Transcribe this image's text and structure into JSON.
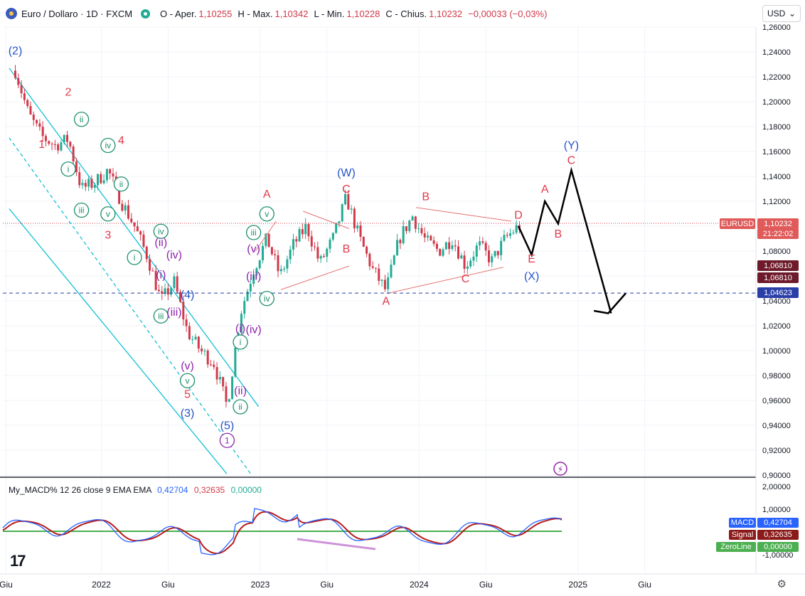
{
  "header": {
    "symbol_title": "Euro / Dollaro · 1D · FXCM",
    "open_label": "O - Aper.",
    "open_value": "1,10255",
    "high_label": "H - Max.",
    "high_value": "1,10342",
    "low_label": "L - Min.",
    "low_value": "1,10228",
    "close_label": "C - Chius.",
    "close_value": "1,10232",
    "change_value": "−0,00033 (−0,03%)",
    "currency_button": "USD"
  },
  "icons": {
    "flag": "eur-usd-flag-icon",
    "status": "market-status-icon",
    "logo": "tradingview-logo-icon",
    "settings": "gear-icon",
    "dropdown": "chevron-down-icon",
    "flash": "flash-icon"
  },
  "colors": {
    "up": "#22ab94",
    "down": "#d1394a",
    "trend": "#00bcd4",
    "wave_blue": "#2453c7",
    "wave_red": "#e0394a",
    "wave_green": "#1a8f6a",
    "wave_purple": "#8e24aa",
    "support": "#2a3ea8",
    "zero_line": "#4caf50",
    "signal": "#b71c1c",
    "macd": "#2962ff"
  },
  "macd": {
    "title": "My_MACD% 12 26 close 9 EMA EMA",
    "v1": "0,42704",
    "v2": "0,32635",
    "v3": "0,00000",
    "tags": [
      {
        "label": "MACD",
        "value": "0,42704"
      },
      {
        "label": "Signal",
        "value": "0,32635"
      },
      {
        "label": "ZeroLine",
        "value": "0,00000"
      }
    ],
    "axis": [
      "2,00000",
      "1,00000",
      "-1,00000"
    ]
  },
  "price_tags": [
    {
      "text": "EURUSD"
    },
    {
      "text": "1,10232"
    },
    {
      "text": "21:22:02"
    },
    {
      "text": "1,06810"
    },
    {
      "text": "1,06810"
    },
    {
      "text": "1,04623"
    }
  ],
  "chart_data": {
    "type": "line",
    "title": "Euro / Dollaro · 1D · FXCM",
    "y_ticks": [
      "1,26000",
      "1,24000",
      "1,22000",
      "1,20000",
      "1,18000",
      "1,16000",
      "1,14000",
      "1,12000",
      "1,10000",
      "1,08000",
      "1,06000",
      "1,04000",
      "1,02000",
      "1,00000",
      "0,98000",
      "0,96000",
      "0,94000",
      "0,92000",
      "0,90000"
    ],
    "x_ticks": [
      "Giu",
      "2022",
      "Giu",
      "2023",
      "Giu",
      "2024",
      "Giu",
      "2025",
      "Giu"
    ],
    "ylim": [
      0.9,
      1.26
    ],
    "price_path": [
      {
        "t": "2021-06",
        "p": 1.225
      },
      {
        "t": "2021-07",
        "p": 1.19
      },
      {
        "t": "2021-08",
        "p": 1.172
      },
      {
        "t": "2021-09",
        "p": 1.165
      },
      {
        "t": "2021-10",
        "p": 1.17
      },
      {
        "t": "2021-11",
        "p": 1.13
      },
      {
        "t": "2021-12",
        "p": 1.135
      },
      {
        "t": "2022-01",
        "p": 1.145
      },
      {
        "t": "2022-02",
        "p": 1.12
      },
      {
        "t": "2022-03",
        "p": 1.1
      },
      {
        "t": "2022-04",
        "p": 1.075
      },
      {
        "t": "2022-05",
        "p": 1.04
      },
      {
        "t": "2022-06",
        "p": 1.055
      },
      {
        "t": "2022-07",
        "p": 1.015
      },
      {
        "t": "2022-08",
        "p": 1.0
      },
      {
        "t": "2022-09",
        "p": 0.99
      },
      {
        "t": "2022-10",
        "p": 0.955
      },
      {
        "t": "2022-11",
        "p": 1.03
      },
      {
        "t": "2022-12",
        "p": 1.065
      },
      {
        "t": "2023-01",
        "p": 1.09
      },
      {
        "t": "2023-02",
        "p": 1.06
      },
      {
        "t": "2023-03",
        "p": 1.085
      },
      {
        "t": "2023-04",
        "p": 1.1
      },
      {
        "t": "2023-05",
        "p": 1.07
      },
      {
        "t": "2023-06",
        "p": 1.09
      },
      {
        "t": "2023-07",
        "p": 1.123
      },
      {
        "t": "2023-08",
        "p": 1.09
      },
      {
        "t": "2023-09",
        "p": 1.065
      },
      {
        "t": "2023-10",
        "p": 1.048
      },
      {
        "t": "2023-11",
        "p": 1.09
      },
      {
        "t": "2023-12",
        "p": 1.108
      },
      {
        "t": "2024-01",
        "p": 1.088
      },
      {
        "t": "2024-02",
        "p": 1.08
      },
      {
        "t": "2024-03",
        "p": 1.09
      },
      {
        "t": "2024-04",
        "p": 1.068
      },
      {
        "t": "2024-05",
        "p": 1.085
      },
      {
        "t": "2024-06",
        "p": 1.072
      },
      {
        "t": "2024-07",
        "p": 1.09
      },
      {
        "t": "2024-08",
        "p": 1.1
      }
    ],
    "forecast_path": [
      {
        "t": "2024-08",
        "p": 1.1
      },
      {
        "t": "2024-09",
        "p": 1.077
      },
      {
        "t": "2024-10",
        "p": 1.12
      },
      {
        "t": "2024-11",
        "p": 1.102
      },
      {
        "t": "2024-12",
        "p": 1.145
      },
      {
        "t": "2025-03",
        "p": 1.03
      },
      {
        "t": "2025-02",
        "p": 1.038
      },
      {
        "t": "2025-03",
        "p": 1.03
      },
      {
        "t": "2025-04",
        "p": 1.045
      }
    ],
    "current_price": 1.10232,
    "support_level": 1.04623,
    "labels": [
      {
        "text": "(2)",
        "t": "2021-06",
        "p": 1.238,
        "c": "blue"
      },
      {
        "text": "2",
        "t": "2021-10",
        "p": 1.205,
        "c": "red"
      },
      {
        "text": "1",
        "t": "2021-08",
        "p": 1.163,
        "c": "red"
      },
      {
        "text": "ii",
        "t": "2021-11",
        "p": 1.183,
        "c": "green",
        "circle": true
      },
      {
        "text": "iv",
        "t": "2022-01",
        "p": 1.162,
        "c": "green",
        "circle": true
      },
      {
        "text": "4",
        "t": "2022-02",
        "p": 1.166,
        "c": "red"
      },
      {
        "text": "i",
        "t": "2021-10",
        "p": 1.143,
        "c": "green",
        "circle": true
      },
      {
        "text": "ii",
        "t": "2022-02",
        "p": 1.131,
        "c": "green",
        "circle": true
      },
      {
        "text": "iii",
        "t": "2021-11",
        "p": 1.11,
        "c": "green",
        "circle": true
      },
      {
        "text": "v",
        "t": "2022-01",
        "p": 1.107,
        "c": "green",
        "circle": true
      },
      {
        "text": "3",
        "t": "2022-01",
        "p": 1.09,
        "c": "red"
      },
      {
        "text": "i",
        "t": "2022-03",
        "p": 1.072,
        "c": "green",
        "circle": true
      },
      {
        "text": "iv",
        "t": "2022-05",
        "p": 1.093,
        "c": "green",
        "circle": true
      },
      {
        "text": "(ii)",
        "t": "2022-05",
        "p": 1.084,
        "c": "purple"
      },
      {
        "text": "(iv)",
        "t": "2022-06",
        "p": 1.074,
        "c": "purple"
      },
      {
        "text": "(i)",
        "t": "2022-05",
        "p": 1.058,
        "c": "purple"
      },
      {
        "text": "(4)",
        "t": "2022-07",
        "p": 1.042,
        "c": "blue"
      },
      {
        "text": "iii",
        "t": "2022-05",
        "p": 1.025,
        "c": "green",
        "circle": true
      },
      {
        "text": "(iii)",
        "t": "2022-06",
        "p": 1.028,
        "c": "purple"
      },
      {
        "text": "(v)",
        "t": "2022-07",
        "p": 0.985,
        "c": "purple"
      },
      {
        "text": "v",
        "t": "2022-07",
        "p": 0.973,
        "c": "green",
        "circle": true
      },
      {
        "text": "5",
        "t": "2022-07",
        "p": 0.962,
        "c": "red"
      },
      {
        "text": "(3)",
        "t": "2022-07",
        "p": 0.947,
        "c": "blue"
      },
      {
        "text": "(i)",
        "t": "2022-11",
        "p": 1.015,
        "c": "purple"
      },
      {
        "text": "i",
        "t": "2022-11",
        "p": 1.004,
        "c": "green",
        "circle": true
      },
      {
        "text": "(iv)",
        "t": "2022-12",
        "p": 1.014,
        "c": "purple"
      },
      {
        "text": "(ii)",
        "t": "2022-11",
        "p": 0.965,
        "c": "purple"
      },
      {
        "text": "ii",
        "t": "2022-11",
        "p": 0.952,
        "c": "green",
        "circle": true
      },
      {
        "text": "(5)",
        "t": "2022-10",
        "p": 0.937,
        "c": "blue"
      },
      {
        "text": "1",
        "t": "2022-10",
        "p": 0.925,
        "c": "purple",
        "circle": true
      },
      {
        "text": "(iii)",
        "t": "2022-12",
        "p": 1.057,
        "c": "purple"
      },
      {
        "text": "(v)",
        "t": "2022-12",
        "p": 1.079,
        "c": "purple"
      },
      {
        "text": "iii",
        "t": "2022-12",
        "p": 1.092,
        "c": "green",
        "circle": true
      },
      {
        "text": "v",
        "t": "2023-01",
        "p": 1.107,
        "c": "green",
        "circle": true
      },
      {
        "text": "iv",
        "t": "2023-01",
        "p": 1.039,
        "c": "green",
        "circle": true
      },
      {
        "text": "A",
        "t": "2023-01",
        "p": 1.123,
        "c": "red"
      },
      {
        "text": "(W)",
        "t": "2023-07",
        "p": 1.14,
        "c": "blue"
      },
      {
        "text": "C",
        "t": "2023-07",
        "p": 1.127,
        "c": "red"
      },
      {
        "text": "B",
        "t": "2023-07",
        "p": 1.079,
        "c": "red"
      },
      {
        "text": "A",
        "t": "2023-10",
        "p": 1.037,
        "c": "red"
      },
      {
        "text": "B",
        "t": "2024-01",
        "p": 1.121,
        "c": "red"
      },
      {
        "text": "C",
        "t": "2024-04",
        "p": 1.055,
        "c": "red"
      },
      {
        "text": "D",
        "t": "2024-08",
        "p": 1.106,
        "c": "red"
      },
      {
        "text": "E",
        "t": "2024-09",
        "p": 1.071,
        "c": "red"
      },
      {
        "text": "(X)",
        "t": "2024-09",
        "p": 1.057,
        "c": "blue"
      },
      {
        "text": "A",
        "t": "2024-10",
        "p": 1.127,
        "c": "red"
      },
      {
        "text": "B",
        "t": "2024-11",
        "p": 1.091,
        "c": "red"
      },
      {
        "text": "(Y)",
        "t": "2024-12",
        "p": 1.162,
        "c": "blue"
      },
      {
        "text": "C",
        "t": "2024-12",
        "p": 1.15,
        "c": "red"
      }
    ]
  }
}
